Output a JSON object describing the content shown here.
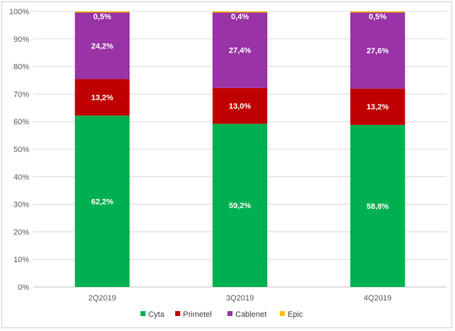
{
  "chart_data": {
    "type": "bar",
    "stacked": true,
    "percent_stacked": true,
    "categories": [
      "2Q2019",
      "3Q2019",
      "4Q2019"
    ],
    "series": [
      {
        "name": "Cyta",
        "values": [
          62.2,
          59.2,
          58.8
        ],
        "labels": [
          "62,2%",
          "59,2%",
          "58,8%"
        ],
        "color": "#00B050"
      },
      {
        "name": "Primetel",
        "values": [
          13.2,
          13.0,
          13.2
        ],
        "labels": [
          "13,2%",
          "13,0%",
          "13,2%"
        ],
        "color": "#C00000"
      },
      {
        "name": "Cablenet",
        "values": [
          24.2,
          27.4,
          27.6
        ],
        "labels": [
          "24,2%",
          "27,4%",
          "27,6%"
        ],
        "color": "#9933A6"
      },
      {
        "name": "Epic",
        "values": [
          0.5,
          0.4,
          0.5
        ],
        "labels": [
          "0,5%",
          "0,4%",
          "0,5%"
        ],
        "color": "#FFC000"
      }
    ],
    "y_ticks": [
      "0%",
      "10%",
      "20%",
      "30%",
      "40%",
      "50%",
      "60%",
      "70%",
      "80%",
      "90%",
      "100%"
    ],
    "ylim": [
      0,
      100
    ],
    "grid": true,
    "legend_position": "bottom",
    "title": "",
    "xlabel": "",
    "ylabel": ""
  }
}
